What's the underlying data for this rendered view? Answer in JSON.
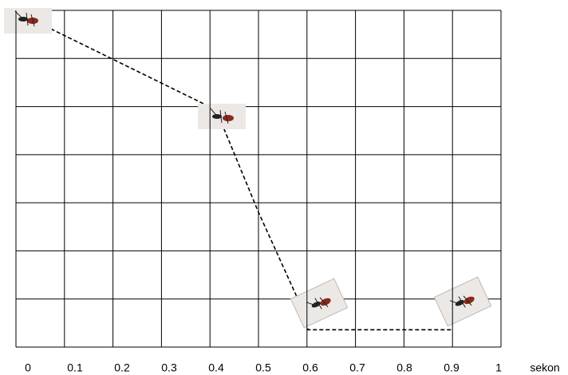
{
  "chart_data": {
    "type": "line",
    "x_label": "sekon",
    "xlim": [
      0,
      1
    ],
    "xticks": [
      0,
      0.1,
      0.2,
      0.3,
      0.4,
      0.5,
      0.6,
      0.7,
      0.8,
      0.9,
      1
    ],
    "ylim": [
      0,
      7
    ],
    "x": [
      0,
      0.4,
      0.49,
      0.585,
      0.595,
      0.9
    ],
    "series": [
      {
        "color": "#000000",
        "values": [
          6.85,
          4.93,
          2.8,
          0.75,
          0.36,
          0.36
        ]
      }
    ],
    "grid": true
  }
}
